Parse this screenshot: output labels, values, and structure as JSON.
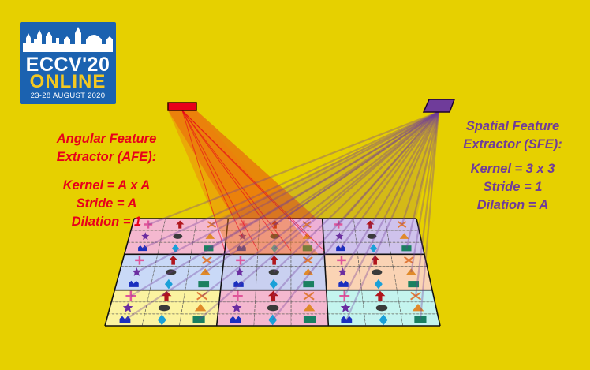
{
  "logo": {
    "title": "ECCV'20",
    "subtitle": "ONLINE",
    "dates": "23-28 AUGUST 2020"
  },
  "afe": {
    "title_line1": "Angular Feature",
    "title_line2": "Extractor (AFE):",
    "kernel": "Kernel = A x A",
    "stride": "Stride = A",
    "dilation": "Dilation = 1"
  },
  "sfe": {
    "title_line1": "Spatial Feature",
    "title_line2": "Extractor (SFE):",
    "kernel": "Kernel = 3 x 3",
    "stride": "Stride = 1",
    "dilation": "Dilation = A"
  },
  "colors": {
    "background": "#e6d000",
    "afe": "#e8001a",
    "sfe": "#6f3c9a",
    "logo_blue": "#1b62b0",
    "logo_yellow": "#f3c821"
  },
  "grid": {
    "macro_rows": 3,
    "macro_cols": 3,
    "subcells": 3,
    "palette": [
      [
        "#f4b8cf",
        "#eeb0d6",
        "#cfc2ec"
      ],
      [
        "#c9d9f7",
        "#c9d0f0",
        "#fad3b4"
      ],
      [
        "#fbf3a0",
        "#f4b8cf",
        "#c4f4ee"
      ]
    ],
    "icons": [
      [
        "plus",
        "arrow",
        "cross"
      ],
      [
        "star",
        "oval",
        "triangle"
      ],
      [
        "crown",
        "diamond",
        "rect"
      ]
    ]
  }
}
